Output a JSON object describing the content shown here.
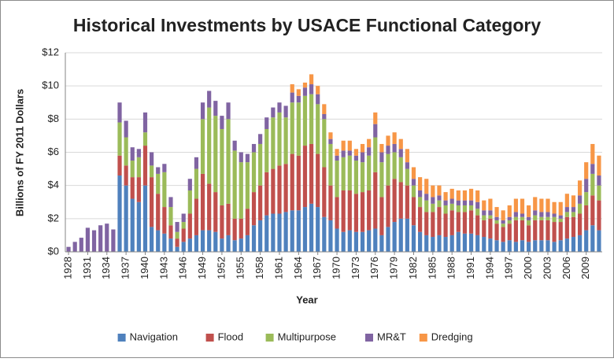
{
  "chart_data": {
    "type": "stacked_bar",
    "title": "Historical Investments by USACE Functional Category",
    "x_label": "Year",
    "y_label": "Billions of FY 2011 Dollars",
    "x": [
      1928,
      1929,
      1930,
      1931,
      1932,
      1933,
      1934,
      1935,
      1936,
      1937,
      1938,
      1939,
      1940,
      1941,
      1942,
      1943,
      1944,
      1945,
      1946,
      1947,
      1948,
      1949,
      1950,
      1951,
      1952,
      1953,
      1954,
      1955,
      1956,
      1957,
      1958,
      1959,
      1960,
      1961,
      1962,
      1963,
      1964,
      1965,
      1966,
      1967,
      1968,
      1969,
      1970,
      1971,
      1972,
      1973,
      1974,
      1975,
      1976,
      1977,
      1978,
      1979,
      1980,
      1981,
      1982,
      1983,
      1984,
      1985,
      1986,
      1987,
      1988,
      1989,
      1990,
      1991,
      1992,
      1993,
      1994,
      1995,
      1996,
      1997,
      1998,
      1999,
      2000,
      2001,
      2002,
      2003,
      2004,
      2005,
      2006,
      2007,
      2008,
      2009,
      2010,
      2011
    ],
    "xlim": [
      1927.5,
      2011.5
    ],
    "xticks": [
      1928,
      1931,
      1934,
      1937,
      1940,
      1943,
      1946,
      1949,
      1952,
      1955,
      1958,
      1961,
      1964,
      1967,
      1970,
      1973,
      1976,
      1979,
      1982,
      1985,
      1988,
      1991,
      1994,
      1997,
      2000,
      2003,
      2006,
      2009
    ],
    "ylim": [
      0,
      12
    ],
    "yticks": [
      {
        "value": 0,
        "label": "$0"
      },
      {
        "value": 2,
        "label": "$2"
      },
      {
        "value": 4,
        "label": "$4"
      },
      {
        "value": 6,
        "label": "$6"
      },
      {
        "value": 8,
        "label": "$8"
      },
      {
        "value": 10,
        "label": "$10"
      },
      {
        "value": 12,
        "label": "$12"
      }
    ],
    "grid": true,
    "legend": "bottom",
    "series": [
      {
        "name": "Navigation",
        "color": "#4f81bd",
        "values": [
          0,
          0,
          0,
          0,
          0,
          0,
          0,
          0,
          4.6,
          4.0,
          3.2,
          3.0,
          4.0,
          1.5,
          1.3,
          1.1,
          0.8,
          0.3,
          0.6,
          0.8,
          1.0,
          1.3,
          1.3,
          1.2,
          0.8,
          1.0,
          0.7,
          0.8,
          1.0,
          1.6,
          1.9,
          2.2,
          2.3,
          2.3,
          2.4,
          2.5,
          2.5,
          2.7,
          2.9,
          2.7,
          2.1,
          1.9,
          1.4,
          1.2,
          1.3,
          1.2,
          1.2,
          1.3,
          1.4,
          1.0,
          1.5,
          1.8,
          2.0,
          2.0,
          1.6,
          1.2,
          1.0,
          0.9,
          1.0,
          0.9,
          1.0,
          1.2,
          1.1,
          1.1,
          1.0,
          0.9,
          0.8,
          0.7,
          0.6,
          0.7,
          0.6,
          0.7,
          0.6,
          0.7,
          0.7,
          0.7,
          0.6,
          0.7,
          0.8,
          0.9,
          1.0,
          1.3,
          1.6,
          1.3
        ]
      },
      {
        "name": "Flood",
        "color": "#c0504d",
        "values": [
          0,
          0,
          0,
          0,
          0,
          0,
          0,
          0,
          1.2,
          1.2,
          1.3,
          1.5,
          2.4,
          3.0,
          2.2,
          1.6,
          0.8,
          0.5,
          0.8,
          1.5,
          2.2,
          3.4,
          2.8,
          2.4,
          2.0,
          1.9,
          1.3,
          1.2,
          1.6,
          2.0,
          2.1,
          2.6,
          2.7,
          2.9,
          2.9,
          3.4,
          3.3,
          3.7,
          3.6,
          3.2,
          3.0,
          2.1,
          1.9,
          2.5,
          2.4,
          2.3,
          2.4,
          2.4,
          3.4,
          2.3,
          2.5,
          2.6,
          2.2,
          2.0,
          1.7,
          1.5,
          1.4,
          1.5,
          1.7,
          1.4,
          1.5,
          1.2,
          1.3,
          1.4,
          1.2,
          1.0,
          1.2,
          1.0,
          0.9,
          1.0,
          1.3,
          1.2,
          1.0,
          1.2,
          1.2,
          1.2,
          1.2,
          1.1,
          1.3,
          1.2,
          1.3,
          1.5,
          1.8,
          1.8
        ]
      },
      {
        "name": "Multipurpose",
        "color": "#9bbb59",
        "values": [
          0,
          0,
          0,
          0,
          0,
          0,
          0,
          0,
          2.0,
          1.7,
          1.0,
          1.2,
          0.8,
          0.7,
          1.2,
          2.1,
          1.1,
          0.4,
          0.4,
          1.4,
          1.8,
          3.3,
          4.6,
          4.6,
          4.6,
          5.1,
          4.1,
          3.4,
          2.8,
          2.4,
          2.5,
          2.6,
          3.1,
          3.2,
          2.8,
          3.1,
          3.2,
          3.0,
          3.0,
          3.0,
          2.9,
          2.5,
          2.2,
          2.0,
          2.1,
          2.0,
          1.8,
          2.1,
          2.1,
          2.1,
          1.9,
          1.6,
          1.5,
          1.0,
          0.7,
          0.6,
          0.7,
          0.5,
          0.4,
          0.5,
          0.4,
          0.4,
          0.4,
          0.3,
          0.4,
          0.3,
          0.2,
          0.2,
          0.2,
          0.2,
          0.2,
          0.2,
          0.3,
          0.3,
          0.2,
          0.2,
          0.3,
          0.2,
          0.3,
          0.3,
          0.6,
          0.8,
          1.3,
          0.9
        ]
      },
      {
        "name": "MR&T",
        "color": "#8064a2",
        "values": [
          0.3,
          0.6,
          0.85,
          1.45,
          1.3,
          1.6,
          1.7,
          1.35,
          1.2,
          1.0,
          0.8,
          0.5,
          1.2,
          0.8,
          0.4,
          0.5,
          0.6,
          0.6,
          0.5,
          0.7,
          0.7,
          1.0,
          1.0,
          0.9,
          0.8,
          1.0,
          0.6,
          0.6,
          0.5,
          0.5,
          0.6,
          0.7,
          0.6,
          0.6,
          0.7,
          0.6,
          0.4,
          0.5,
          0.6,
          0.6,
          0.3,
          0.3,
          0.3,
          0.4,
          0.3,
          0.3,
          0.6,
          0.5,
          0.8,
          0.6,
          0.5,
          0.5,
          0.5,
          0.4,
          0.4,
          0.4,
          0.4,
          0.4,
          0.3,
          0.3,
          0.3,
          0.3,
          0.3,
          0.3,
          0.4,
          0.3,
          0.3,
          0.2,
          0.2,
          0.2,
          0.3,
          0.2,
          0.2,
          0.3,
          0.3,
          0.3,
          0.2,
          0.2,
          0.3,
          0.3,
          0.5,
          0.8,
          0.6,
          0.6
        ]
      },
      {
        "name": "Dredging",
        "color": "#f79646",
        "values": [
          0,
          0,
          0,
          0,
          0,
          0,
          0,
          0,
          0,
          0,
          0,
          0,
          0,
          0,
          0,
          0,
          0,
          0,
          0,
          0,
          0,
          0,
          0,
          0,
          0,
          0,
          0,
          0,
          0,
          0,
          0,
          0,
          0,
          0,
          0,
          0.5,
          0.4,
          0.3,
          0.6,
          0.5,
          0.6,
          0.4,
          0.4,
          0.6,
          0.6,
          0.4,
          0.5,
          0.5,
          0.7,
          0.5,
          0.6,
          0.7,
          0.6,
          0.8,
          0.7,
          0.8,
          0.9,
          0.7,
          0.6,
          0.5,
          0.6,
          0.6,
          0.6,
          0.7,
          0.7,
          0.6,
          0.7,
          0.6,
          0.6,
          0.7,
          0.8,
          0.9,
          0.7,
          0.8,
          0.8,
          0.8,
          0.7,
          0.8,
          0.8,
          0.7,
          0.9,
          1.0,
          1.2,
          1.2
        ]
      }
    ]
  }
}
